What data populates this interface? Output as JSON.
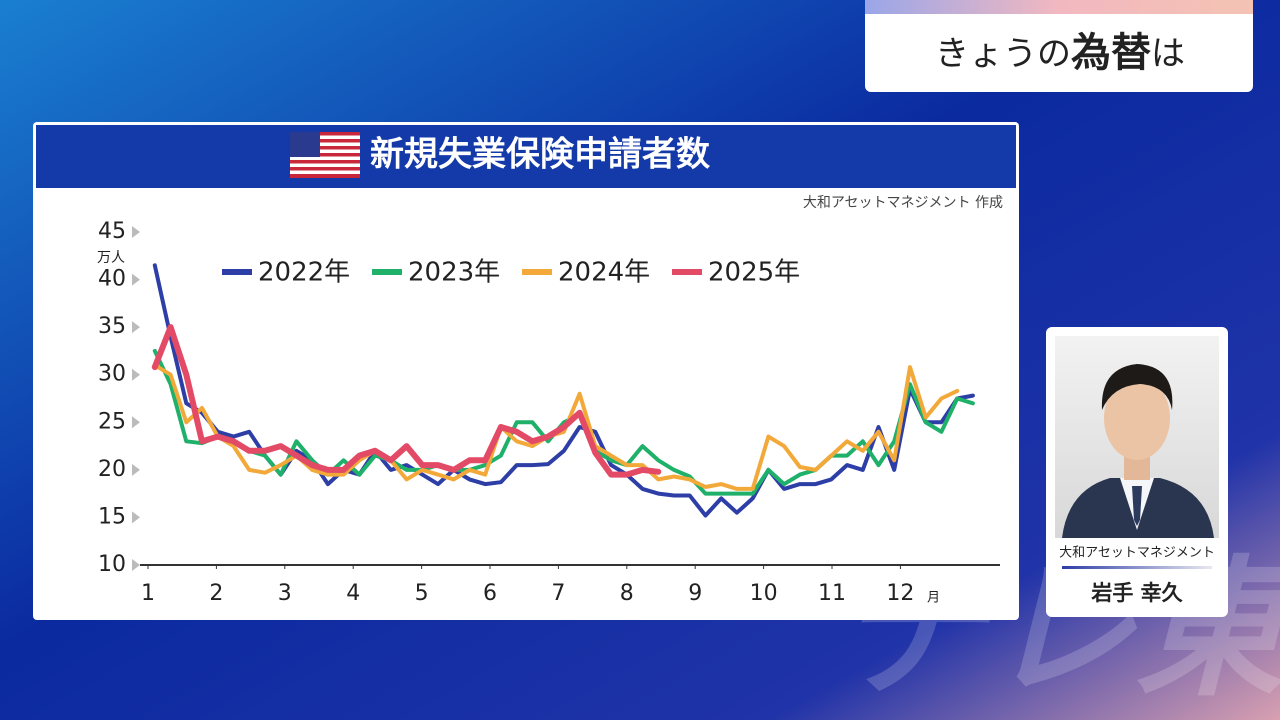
{
  "header": {
    "parts": [
      "きょうの",
      "為替",
      "は"
    ]
  },
  "watermark": "テレ東",
  "presenter": {
    "company": "大和アセットマネジメント",
    "name": "岩手 幸久"
  },
  "chart_data": {
    "type": "line",
    "title": "新規失業保険申請者数",
    "source": "大和アセットマネジメント 作成",
    "y_unit": "万人",
    "x_unit": "月",
    "xlim": [
      1,
      13.5
    ],
    "xticks": [
      1,
      2,
      3,
      4,
      5,
      6,
      7,
      8,
      9,
      10,
      11,
      12
    ],
    "ylim": [
      10,
      45
    ],
    "yticks": [
      10,
      15,
      20,
      25,
      30,
      35,
      40,
      45
    ],
    "legend": "top-left",
    "x": [
      1.1,
      1.33,
      1.56,
      1.79,
      2.02,
      2.25,
      2.48,
      2.71,
      2.94,
      3.17,
      3.4,
      3.63,
      3.86,
      4.09,
      4.32,
      4.55,
      4.78,
      5.01,
      5.24,
      5.47,
      5.7,
      5.93,
      6.16,
      6.39,
      6.62,
      6.85,
      7.08,
      7.31,
      7.54,
      7.77,
      8.0,
      8.23,
      8.46,
      8.69,
      8.92,
      9.15,
      9.38,
      9.61,
      9.84,
      10.07,
      10.3,
      10.53,
      10.76,
      10.99,
      11.22,
      11.45,
      11.68,
      11.91,
      12.14,
      12.37,
      12.6,
      12.83,
      13.06
    ],
    "series": [
      {
        "name": "2022年",
        "color": "#2d3ea6",
        "values": [
          41.5,
          34,
          27,
          26,
          24,
          23.5,
          24,
          21.5,
          19.5,
          22,
          21,
          18.5,
          20,
          19.5,
          22,
          20,
          20.5,
          19.5,
          18.5,
          20,
          19,
          18.5,
          18.7,
          20.5,
          20.5,
          20.6,
          22,
          24.5,
          24,
          20.5,
          19.5,
          18,
          17.5,
          17.3,
          17.3,
          15.2,
          17,
          15.5,
          17,
          20,
          18,
          18.5,
          18.5,
          19,
          20.5,
          20,
          24.5,
          20,
          28.5,
          25,
          25,
          27.5,
          27.8
        ]
      },
      {
        "name": "2023年",
        "color": "#1fb06a",
        "values": [
          32.5,
          29,
          23,
          22.8,
          23.5,
          23,
          22,
          21.5,
          19.5,
          23,
          21,
          19.5,
          21,
          19.5,
          21.5,
          21,
          20,
          20,
          20.5,
          20,
          20,
          20.5,
          21.5,
          25,
          25,
          23,
          25,
          25.8,
          22,
          21,
          20.5,
          22.5,
          21,
          20,
          19.3,
          17.5,
          17.5,
          17.5,
          17.5,
          20,
          18.5,
          19.5,
          20,
          21.5,
          21.5,
          23,
          20.5,
          23,
          29,
          25,
          24,
          27.5,
          27
        ]
      },
      {
        "name": "2024年",
        "color": "#f3a93a",
        "values": [
          31,
          30,
          25,
          26.5,
          23.5,
          22.5,
          20,
          19.7,
          20.5,
          21.5,
          20,
          19.5,
          19.5,
          21,
          22,
          21,
          19,
          20,
          19.5,
          19,
          20,
          19.5,
          24.5,
          23,
          22.5,
          23.5,
          24,
          28,
          22.5,
          21.5,
          20.5,
          20.5,
          19,
          19.3,
          19,
          18.2,
          18.5,
          18,
          18,
          23.5,
          22.5,
          20.3,
          20,
          21.5,
          23,
          22,
          24,
          21,
          30.8,
          25.5,
          27.5,
          28.3,
          null
        ]
      },
      {
        "name": "2025年",
        "color": "#e24a66",
        "values": [
          30.8,
          35,
          30,
          23,
          23.5,
          23,
          22,
          22,
          22.5,
          21.5,
          20.5,
          20,
          20,
          21.5,
          22,
          21,
          22.5,
          20.5,
          20.5,
          20,
          21,
          21,
          24.5,
          24,
          23,
          23.5,
          24.5,
          26,
          21.8,
          19.5,
          19.5,
          20,
          19.8,
          null,
          null,
          null,
          null,
          null,
          null,
          null,
          null,
          null,
          null,
          null,
          null,
          null,
          null,
          null,
          null,
          null,
          null,
          null,
          null
        ]
      }
    ]
  }
}
